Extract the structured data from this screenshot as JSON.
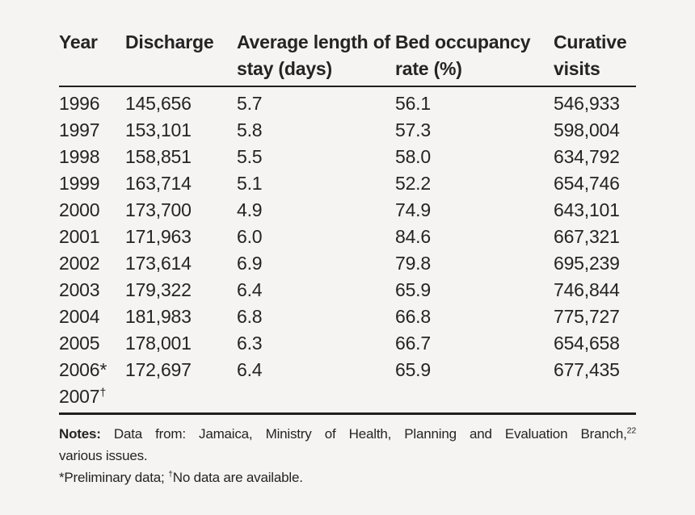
{
  "page": {
    "background_color": "#f5f4f2",
    "text_color": "#262324",
    "rule_color": "#221e1f"
  },
  "chart_data": {
    "type": "table",
    "columns": [
      "Year",
      "Discharge",
      "Average length of stay (days)",
      "Bed occupancy rate (%)",
      "Curative visits"
    ],
    "rows": [
      [
        "1996",
        "145,656",
        "5.7",
        "56.1",
        "546,933"
      ],
      [
        "1997",
        "153,101",
        "5.8",
        "57.3",
        "598,004"
      ],
      [
        "1998",
        "158,851",
        "5.5",
        "58.0",
        "634,792"
      ],
      [
        "1999",
        "163,714",
        "5.1",
        "52.2",
        "654,746"
      ],
      [
        "2000",
        "173,700",
        "4.9",
        "74.9",
        "643,101"
      ],
      [
        "2001",
        "171,963",
        "6.0",
        "84.6",
        "667,321"
      ],
      [
        "2002",
        "173,614",
        "6.9",
        "79.8",
        "695,239"
      ],
      [
        "2003",
        "179,322",
        "6.4",
        "65.9",
        "746,844"
      ],
      [
        "2004",
        "181,983",
        "6.8",
        "66.8",
        "775,727"
      ],
      [
        "2005",
        "178,001",
        "6.3",
        "66.7",
        "654,658"
      ],
      [
        "2006*",
        "172,697",
        "6.4",
        "65.9",
        "677,435"
      ],
      [
        "2007†",
        "",
        "",
        "",
        ""
      ]
    ]
  },
  "notes": {
    "label": "Notes:",
    "source": "Data from: Jamaica, Ministry of Health, Planning and Evaluation Branch,",
    "reference": "22",
    "source_continued": "various issues.",
    "footnote_star": "*Preliminary data; ",
    "footnote_dagger_symbol": "†",
    "footnote_dagger": "No data are available."
  }
}
